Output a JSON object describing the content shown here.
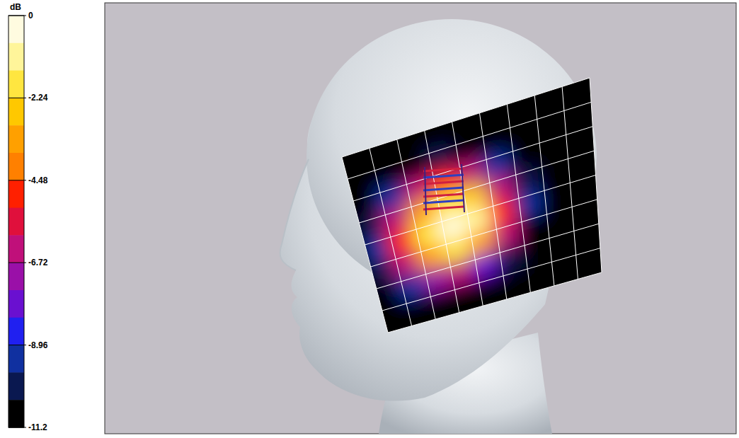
{
  "chart_data": {
    "type": "heatmap",
    "colorbar": {
      "label": "dB",
      "range": [
        -11.2,
        0
      ],
      "ticks": [
        0,
        -2.24,
        -4.48,
        -6.72,
        -8.96,
        -11.2
      ],
      "colors": [
        "#fffbe0",
        "#fff59a",
        "#ffe640",
        "#ffc800",
        "#ffa000",
        "#ff8000",
        "#ff2000",
        "#e0103c",
        "#c0107a",
        "#9a10a8",
        "#6a10d0",
        "#2020f0",
        "#1030a0",
        "#0a1850",
        "#000000"
      ]
    },
    "cells": [
      [
        -11.2,
        -11.2,
        -11.2,
        -11.2,
        -11.2,
        -11.2,
        -11.2,
        -11.2,
        -11.2
      ],
      [
        -11.2,
        -11.2,
        -10.5,
        -10,
        -10.5,
        -11.2,
        -11.2,
        -11.2,
        -11.2
      ],
      [
        -11.2,
        -9.5,
        -6.5,
        -5,
        -6,
        -9,
        -11.2,
        -11.2,
        -11.2
      ],
      [
        -10,
        -6.5,
        -3,
        -1.5,
        -2.5,
        -6,
        -10,
        -11.2,
        -11.2
      ],
      [
        -9.5,
        -5,
        -1.5,
        0,
        -1,
        -4.5,
        -9.5,
        -11.2,
        -11.2
      ],
      [
        -10,
        -6.5,
        -3,
        -1.8,
        -3,
        -6.5,
        -10.5,
        -11.2,
        -11.2
      ],
      [
        -11.2,
        -9.5,
        -7,
        -6,
        -7.5,
        -10,
        -11.2,
        -11.2,
        -11.2
      ],
      [
        -11.2,
        -11.2,
        -11.2,
        -11.2,
        -11.2,
        -11.2,
        -11.2,
        -11.2,
        -11.2
      ]
    ]
  }
}
